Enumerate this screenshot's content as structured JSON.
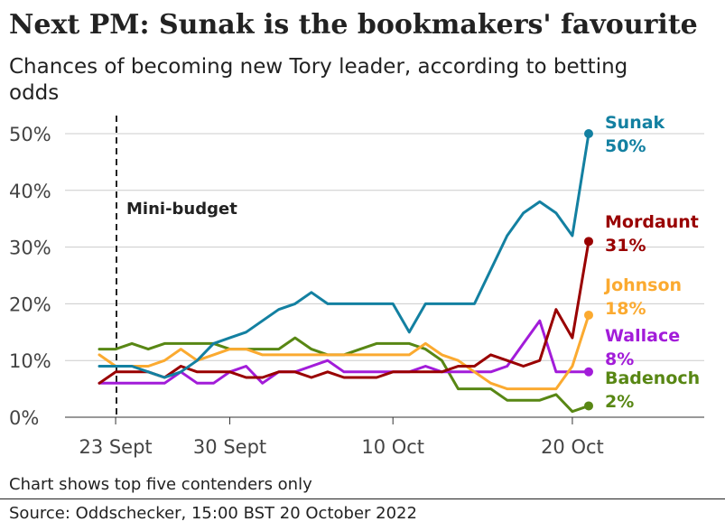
{
  "chart_data": {
    "type": "line",
    "title": "Next PM: Sunak is the bookmakers' favourite",
    "subtitle": "Chances of becoming new Tory leader, according to betting odds",
    "xlabel": "",
    "ylabel": "",
    "ylim": [
      0,
      50
    ],
    "yticks": [
      "0%",
      "10%",
      "20%",
      "30%",
      "40%",
      "50%"
    ],
    "xticks": [
      "23 Sept",
      "30 Sept",
      "10 Oct",
      "20 Oct"
    ],
    "grid": true,
    "annotation": "Mini-budget",
    "series": [
      {
        "name": "Sunak",
        "end_label": "50%",
        "color": "#1380a1",
        "values": [
          9,
          9,
          9,
          8,
          7,
          8,
          10,
          13,
          14,
          15,
          17,
          19,
          20,
          22,
          20,
          20,
          20,
          20,
          20,
          15,
          20,
          20,
          20,
          20,
          26,
          32,
          36,
          38,
          36,
          32,
          50
        ]
      },
      {
        "name": "Mordaunt",
        "end_label": "31%",
        "color": "#990000",
        "values": [
          6,
          8,
          8,
          8,
          7,
          9,
          8,
          8,
          8,
          7,
          7,
          8,
          8,
          7,
          8,
          7,
          7,
          7,
          8,
          8,
          8,
          8,
          9,
          9,
          11,
          10,
          9,
          10,
          19,
          14,
          31
        ]
      },
      {
        "name": "Johnson",
        "end_label": "18%",
        "color": "#fbaa30",
        "values": [
          11,
          9,
          9,
          9,
          10,
          12,
          10,
          11,
          12,
          12,
          11,
          11,
          11,
          11,
          11,
          11,
          11,
          11,
          11,
          11,
          13,
          11,
          10,
          8,
          6,
          5,
          5,
          5,
          5,
          9,
          18
        ]
      },
      {
        "name": "Wallace",
        "end_label": "8%",
        "color": "#a21cd9",
        "values": [
          6,
          6,
          6,
          6,
          6,
          8,
          6,
          6,
          8,
          9,
          6,
          8,
          8,
          9,
          10,
          8,
          8,
          8,
          8,
          8,
          9,
          8,
          8,
          8,
          8,
          9,
          13,
          17,
          8,
          8,
          8
        ]
      },
      {
        "name": "Badenoch",
        "end_label": "2%",
        "color": "#588714",
        "values": [
          12,
          12,
          13,
          12,
          13,
          13,
          13,
          13,
          12,
          12,
          12,
          12,
          14,
          12,
          11,
          11,
          12,
          13,
          13,
          13,
          12,
          10,
          5,
          5,
          5,
          3,
          3,
          3,
          4,
          1,
          2
        ]
      }
    ]
  },
  "footer": {
    "note": "Chart shows top five contenders only",
    "source": "Source: Oddschecker, 15:00 BST 20 October 2022"
  }
}
